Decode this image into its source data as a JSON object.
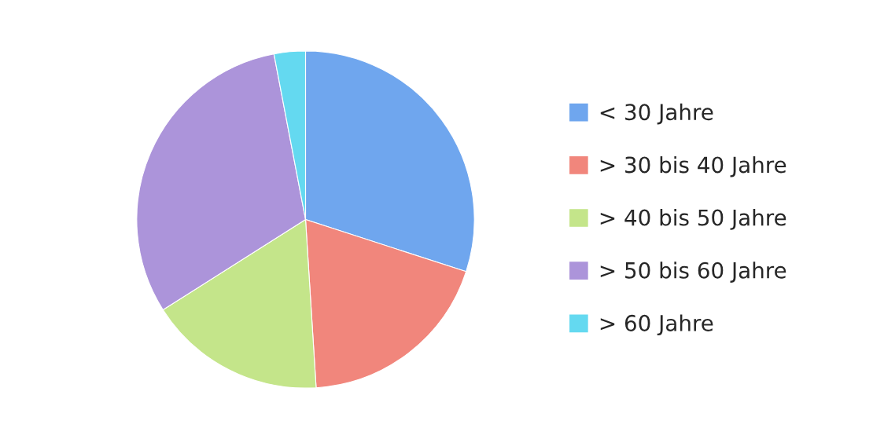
{
  "chart_data": {
    "type": "pie",
    "categories": [
      "< 30 Jahre",
      "> 30 bis 40 Jahre",
      "> 40 bis 50 Jahre",
      "> 50 bis 60 Jahre",
      "> 60 Jahre"
    ],
    "values": [
      30,
      19,
      17,
      31,
      3
    ],
    "colors": [
      "#6fa6ee",
      "#f1867c",
      "#c4e58a",
      "#ac94da",
      "#64d9f0"
    ],
    "legend": "right"
  }
}
